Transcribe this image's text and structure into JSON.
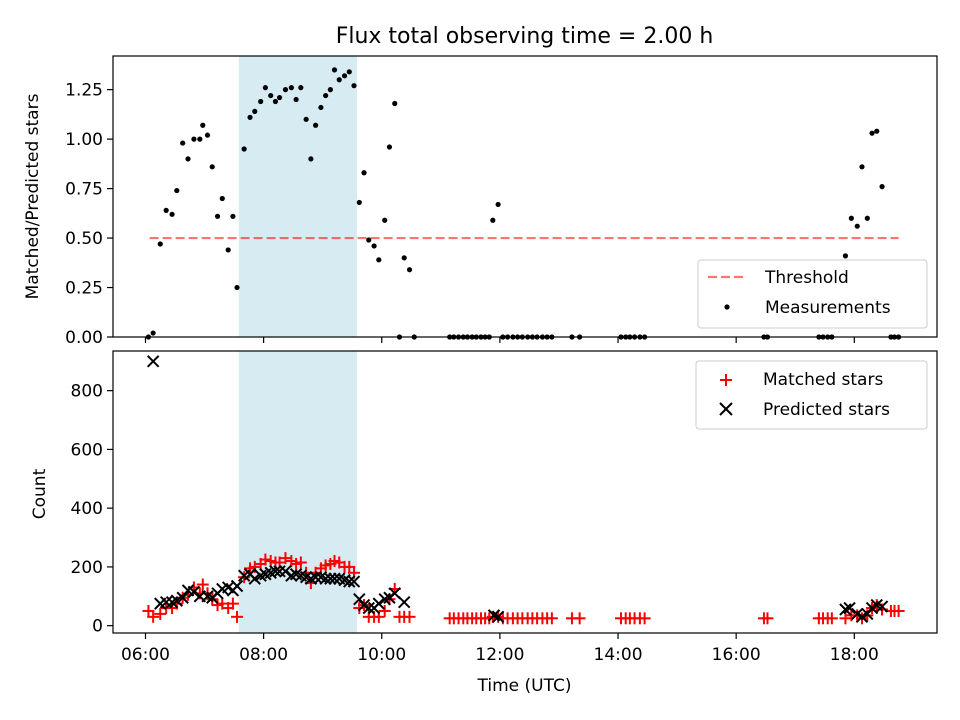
{
  "figure": {
    "title": "Flux total observing time = 2.00 h",
    "xlabel": "Time (UTC)",
    "x_ticks": [
      "06:00",
      "08:00",
      "10:00",
      "12:00",
      "14:00",
      "16:00",
      "18:00"
    ],
    "x_tick_hours": [
      6,
      8,
      10,
      12,
      14,
      16,
      18
    ],
    "xlim_hours": [
      5.45,
      19.4
    ],
    "highlight_span_hours": [
      7.58,
      9.58
    ],
    "colors": {
      "highlight": "#add8e6",
      "threshold": "#ff0000",
      "measurement": "#000000",
      "matched": "#ff0000",
      "predicted": "#000000"
    }
  },
  "chart_data": [
    {
      "type": "scatter",
      "panel": "top",
      "ylabel": "Matched/Predicted stars",
      "ylim": [
        0,
        1.42
      ],
      "y_ticks": [
        "0.00",
        "0.25",
        "0.50",
        "0.75",
        "1.00",
        "1.25"
      ],
      "y_tick_values": [
        0,
        0.25,
        0.5,
        0.75,
        1.0,
        1.25
      ],
      "legend": {
        "placement": "lower-right",
        "entries": [
          "Threshold",
          "Measurements"
        ]
      },
      "threshold": {
        "name": "Threshold",
        "y": 0.5,
        "x_range": [
          6.07,
          18.75
        ]
      },
      "series": [
        {
          "name": "Measurements",
          "points": [
            [
              6.05,
              0.0
            ],
            [
              6.13,
              0.02
            ],
            [
              6.25,
              0.47
            ],
            [
              6.35,
              0.64
            ],
            [
              6.45,
              0.62
            ],
            [
              6.53,
              0.74
            ],
            [
              6.63,
              0.98
            ],
            [
              6.72,
              0.9
            ],
            [
              6.82,
              1.0
            ],
            [
              6.92,
              1.0
            ],
            [
              6.97,
              1.07
            ],
            [
              7.05,
              1.02
            ],
            [
              7.13,
              0.86
            ],
            [
              7.22,
              0.61
            ],
            [
              7.3,
              0.7
            ],
            [
              7.4,
              0.44
            ],
            [
              7.48,
              0.61
            ],
            [
              7.55,
              0.25
            ],
            [
              7.67,
              0.95
            ],
            [
              7.77,
              1.11
            ],
            [
              7.85,
              1.14
            ],
            [
              7.95,
              1.19
            ],
            [
              8.03,
              1.26
            ],
            [
              8.12,
              1.22
            ],
            [
              8.2,
              1.19
            ],
            [
              8.27,
              1.21
            ],
            [
              8.37,
              1.25
            ],
            [
              8.47,
              1.26
            ],
            [
              8.55,
              1.2
            ],
            [
              8.63,
              1.26
            ],
            [
              8.72,
              1.1
            ],
            [
              8.8,
              0.9
            ],
            [
              8.88,
              1.07
            ],
            [
              8.97,
              1.16
            ],
            [
              9.05,
              1.22
            ],
            [
              9.13,
              1.25
            ],
            [
              9.2,
              1.35
            ],
            [
              9.28,
              1.3
            ],
            [
              9.37,
              1.32
            ],
            [
              9.45,
              1.34
            ],
            [
              9.53,
              1.27
            ],
            [
              9.62,
              0.68
            ],
            [
              9.7,
              0.83
            ],
            [
              9.78,
              0.49
            ],
            [
              9.87,
              0.46
            ],
            [
              9.95,
              0.39
            ],
            [
              10.05,
              0.59
            ],
            [
              10.13,
              0.96
            ],
            [
              10.22,
              1.18
            ],
            [
              10.3,
              0.0
            ],
            [
              10.38,
              0.4
            ],
            [
              10.47,
              0.34
            ],
            [
              10.55,
              0.0
            ],
            [
              11.15,
              0.0
            ],
            [
              11.22,
              0.0
            ],
            [
              11.3,
              0.0
            ],
            [
              11.38,
              0.0
            ],
            [
              11.45,
              0.0
            ],
            [
              11.53,
              0.0
            ],
            [
              11.6,
              0.0
            ],
            [
              11.68,
              0.0
            ],
            [
              11.75,
              0.0
            ],
            [
              11.82,
              0.0
            ],
            [
              11.88,
              0.59
            ],
            [
              11.97,
              0.67
            ],
            [
              12.05,
              0.0
            ],
            [
              12.13,
              0.0
            ],
            [
              12.22,
              0.0
            ],
            [
              12.3,
              0.0
            ],
            [
              12.38,
              0.0
            ],
            [
              12.47,
              0.0
            ],
            [
              12.55,
              0.0
            ],
            [
              12.63,
              0.0
            ],
            [
              12.72,
              0.0
            ],
            [
              12.8,
              0.0
            ],
            [
              12.88,
              0.0
            ],
            [
              13.22,
              0.0
            ],
            [
              13.35,
              0.0
            ],
            [
              14.05,
              0.0
            ],
            [
              14.13,
              0.0
            ],
            [
              14.2,
              0.0
            ],
            [
              14.28,
              0.0
            ],
            [
              14.37,
              0.0
            ],
            [
              14.45,
              0.0
            ],
            [
              16.47,
              0.0
            ],
            [
              16.53,
              0.0
            ],
            [
              17.4,
              0.0
            ],
            [
              17.47,
              0.0
            ],
            [
              17.55,
              0.0
            ],
            [
              17.62,
              0.0
            ],
            [
              17.85,
              0.41
            ],
            [
              17.95,
              0.6
            ],
            [
              18.05,
              0.56
            ],
            [
              18.13,
              0.86
            ],
            [
              18.22,
              0.6
            ],
            [
              18.3,
              1.03
            ],
            [
              18.38,
              1.04
            ],
            [
              18.47,
              0.76
            ],
            [
              18.62,
              0.0
            ],
            [
              18.68,
              0.0
            ],
            [
              18.75,
              0.0
            ]
          ]
        }
      ]
    },
    {
      "type": "scatter",
      "panel": "bottom",
      "ylabel": "Count",
      "ylim": [
        -25,
        935
      ],
      "y_ticks": [
        "0",
        "200",
        "400",
        "600",
        "800"
      ],
      "y_tick_values": [
        0,
        200,
        400,
        600,
        800
      ],
      "legend": {
        "placement": "upper-right",
        "entries": [
          "Matched stars",
          "Predicted stars"
        ]
      },
      "series": [
        {
          "name": "Matched stars",
          "marker": "plus",
          "points": [
            [
              6.05,
              50
            ],
            [
              6.13,
              30
            ],
            [
              6.25,
              40
            ],
            [
              6.35,
              60
            ],
            [
              6.45,
              60
            ],
            [
              6.53,
              75
            ],
            [
              6.63,
              95
            ],
            [
              6.72,
              105
            ],
            [
              6.82,
              130
            ],
            [
              6.92,
              110
            ],
            [
              6.97,
              140
            ],
            [
              7.05,
              110
            ],
            [
              7.13,
              90
            ],
            [
              7.22,
              70
            ],
            [
              7.3,
              75
            ],
            [
              7.4,
              60
            ],
            [
              7.48,
              75
            ],
            [
              7.55,
              30
            ],
            [
              7.67,
              165
            ],
            [
              7.77,
              195
            ],
            [
              7.85,
              200
            ],
            [
              7.95,
              210
            ],
            [
              8.03,
              225
            ],
            [
              8.12,
              220
            ],
            [
              8.2,
              215
            ],
            [
              8.27,
              215
            ],
            [
              8.37,
              230
            ],
            [
              8.47,
              220
            ],
            [
              8.55,
              210
            ],
            [
              8.63,
              215
            ],
            [
              8.72,
              180
            ],
            [
              8.8,
              145
            ],
            [
              8.88,
              180
            ],
            [
              8.97,
              195
            ],
            [
              9.05,
              205
            ],
            [
              9.13,
              210
            ],
            [
              9.2,
              220
            ],
            [
              9.28,
              215
            ],
            [
              9.37,
              200
            ],
            [
              9.45,
              200
            ],
            [
              9.53,
              180
            ],
            [
              9.62,
              60
            ],
            [
              9.7,
              70
            ],
            [
              9.78,
              30
            ],
            [
              9.87,
              30
            ],
            [
              9.95,
              30
            ],
            [
              10.05,
              50
            ],
            [
              10.13,
              90
            ],
            [
              10.22,
              125
            ],
            [
              10.3,
              30
            ],
            [
              10.38,
              30
            ],
            [
              10.47,
              30
            ],
            [
              11.15,
              25
            ],
            [
              11.22,
              25
            ],
            [
              11.3,
              25
            ],
            [
              11.38,
              25
            ],
            [
              11.45,
              25
            ],
            [
              11.53,
              25
            ],
            [
              11.6,
              25
            ],
            [
              11.68,
              25
            ],
            [
              11.75,
              25
            ],
            [
              11.82,
              25
            ],
            [
              11.88,
              30
            ],
            [
              11.97,
              30
            ],
            [
              12.05,
              25
            ],
            [
              12.13,
              25
            ],
            [
              12.22,
              25
            ],
            [
              12.3,
              25
            ],
            [
              12.38,
              25
            ],
            [
              12.47,
              25
            ],
            [
              12.55,
              25
            ],
            [
              12.63,
              25
            ],
            [
              12.72,
              25
            ],
            [
              12.8,
              25
            ],
            [
              12.88,
              25
            ],
            [
              13.22,
              25
            ],
            [
              13.35,
              25
            ],
            [
              14.05,
              25
            ],
            [
              14.13,
              25
            ],
            [
              14.2,
              25
            ],
            [
              14.28,
              25
            ],
            [
              14.37,
              25
            ],
            [
              14.45,
              25
            ],
            [
              16.47,
              25
            ],
            [
              16.53,
              25
            ],
            [
              17.4,
              25
            ],
            [
              17.47,
              25
            ],
            [
              17.55,
              25
            ],
            [
              17.62,
              25
            ],
            [
              17.85,
              25
            ],
            [
              17.95,
              35
            ],
            [
              18.05,
              35
            ],
            [
              18.13,
              25
            ],
            [
              18.22,
              35
            ],
            [
              18.3,
              60
            ],
            [
              18.38,
              70
            ],
            [
              18.47,
              55
            ],
            [
              18.62,
              50
            ],
            [
              18.68,
              50
            ],
            [
              18.75,
              50
            ]
          ]
        },
        {
          "name": "Predicted stars",
          "marker": "x",
          "points": [
            [
              6.13,
              900
            ],
            [
              6.25,
              75
            ],
            [
              6.35,
              80
            ],
            [
              6.45,
              80
            ],
            [
              6.53,
              85
            ],
            [
              6.63,
              95
            ],
            [
              6.72,
              120
            ],
            [
              6.82,
              115
            ],
            [
              6.92,
              100
            ],
            [
              7.05,
              100
            ],
            [
              7.13,
              95
            ],
            [
              7.22,
              110
            ],
            [
              7.3,
              125
            ],
            [
              7.4,
              130
            ],
            [
              7.48,
              120
            ],
            [
              7.55,
              135
            ],
            [
              7.67,
              170
            ],
            [
              7.77,
              175
            ],
            [
              7.85,
              160
            ],
            [
              7.95,
              170
            ],
            [
              8.03,
              175
            ],
            [
              8.12,
              180
            ],
            [
              8.2,
              185
            ],
            [
              8.27,
              185
            ],
            [
              8.37,
              185
            ],
            [
              8.47,
              170
            ],
            [
              8.55,
              175
            ],
            [
              8.63,
              170
            ],
            [
              8.72,
              165
            ],
            [
              8.8,
              160
            ],
            [
              8.88,
              165
            ],
            [
              8.97,
              165
            ],
            [
              9.05,
              160
            ],
            [
              9.13,
              160
            ],
            [
              9.2,
              160
            ],
            [
              9.28,
              160
            ],
            [
              9.37,
              155
            ],
            [
              9.45,
              150
            ],
            [
              9.53,
              150
            ],
            [
              9.62,
              90
            ],
            [
              9.7,
              70
            ],
            [
              9.78,
              60
            ],
            [
              9.87,
              60
            ],
            [
              9.95,
              75
            ],
            [
              10.05,
              90
            ],
            [
              10.13,
              95
            ],
            [
              10.22,
              110
            ],
            [
              10.38,
              80
            ],
            [
              11.9,
              35
            ],
            [
              11.97,
              30
            ],
            [
              17.85,
              55
            ],
            [
              17.92,
              60
            ],
            [
              18.05,
              40
            ],
            [
              18.13,
              30
            ],
            [
              18.22,
              40
            ],
            [
              18.3,
              60
            ],
            [
              18.38,
              70
            ],
            [
              18.47,
              65
            ]
          ]
        }
      ]
    }
  ]
}
